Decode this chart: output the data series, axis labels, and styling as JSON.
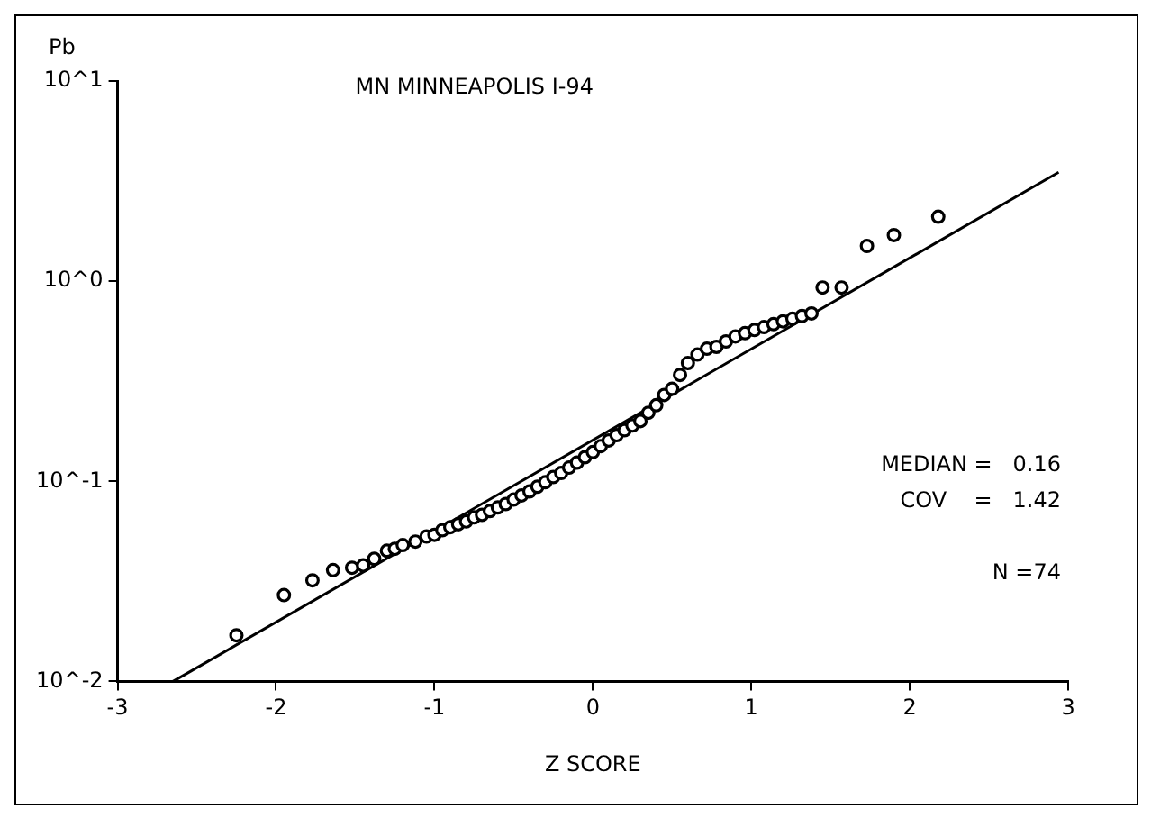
{
  "chart_data": {
    "type": "scatter",
    "title": "MN MINNEAPOLIS I-94",
    "xlabel": "Z SCORE",
    "ylabel": "Pb",
    "log": "y",
    "grid": false,
    "legend": false,
    "marker": "circle",
    "xlim": [
      -3,
      3
    ],
    "xticks": [
      -3,
      -2,
      -1,
      0,
      1,
      2,
      3
    ],
    "ylim": [
      0.01,
      10
    ],
    "yticks": [
      {
        "value": 0.01,
        "label": "10^-2"
      },
      {
        "value": 0.1,
        "label": "10^-1"
      },
      {
        "value": 1,
        "label": "10^0"
      },
      {
        "value": 10,
        "label": "10^1"
      }
    ],
    "annotations": [
      "MEDIAN =   0.16",
      "COV    =   1.42",
      "N =74"
    ],
    "series": [
      {
        "color": "#000000",
        "x": [
          -2.25,
          -1.95,
          -1.77,
          -1.64,
          -1.52,
          -1.45,
          -1.38,
          -1.3,
          -1.25,
          -1.2,
          -1.12,
          -1.05,
          -1.0,
          -0.95,
          -0.9,
          -0.85,
          -0.8,
          -0.75,
          -0.7,
          -0.65,
          -0.6,
          -0.55,
          -0.5,
          -0.45,
          -0.4,
          -0.35,
          -0.3,
          -0.25,
          -0.2,
          -0.15,
          -0.1,
          -0.05,
          0,
          0.05,
          0.1,
          0.15,
          0.2,
          0.25,
          0.3,
          0.35,
          0.4,
          0.45,
          0.5,
          0.55,
          0.6,
          0.66,
          0.72,
          0.78,
          0.84,
          0.9,
          0.96,
          1.02,
          1.08,
          1.14,
          1.2,
          1.26,
          1.32,
          1.38,
          1.45,
          1.57,
          1.73,
          1.9,
          2.18
        ],
        "values": [
          0.017,
          0.027,
          0.032,
          0.036,
          0.037,
          0.038,
          0.041,
          0.045,
          0.046,
          0.048,
          0.05,
          0.053,
          0.054,
          0.057,
          0.059,
          0.061,
          0.063,
          0.066,
          0.068,
          0.071,
          0.074,
          0.077,
          0.081,
          0.085,
          0.089,
          0.094,
          0.099,
          0.105,
          0.11,
          0.117,
          0.124,
          0.132,
          0.14,
          0.15,
          0.16,
          0.17,
          0.18,
          0.19,
          0.2,
          0.22,
          0.24,
          0.27,
          0.29,
          0.34,
          0.39,
          0.43,
          0.46,
          0.47,
          0.5,
          0.53,
          0.55,
          0.57,
          0.59,
          0.61,
          0.63,
          0.65,
          0.67,
          0.69,
          0.93,
          0.93,
          1.5,
          1.7,
          2.1
        ]
      },
      {
        "type": "line",
        "color": "#000000",
        "marker": "none",
        "x": [
          -2.65,
          2.94
        ],
        "values": [
          0.01,
          3.5
        ]
      }
    ]
  }
}
